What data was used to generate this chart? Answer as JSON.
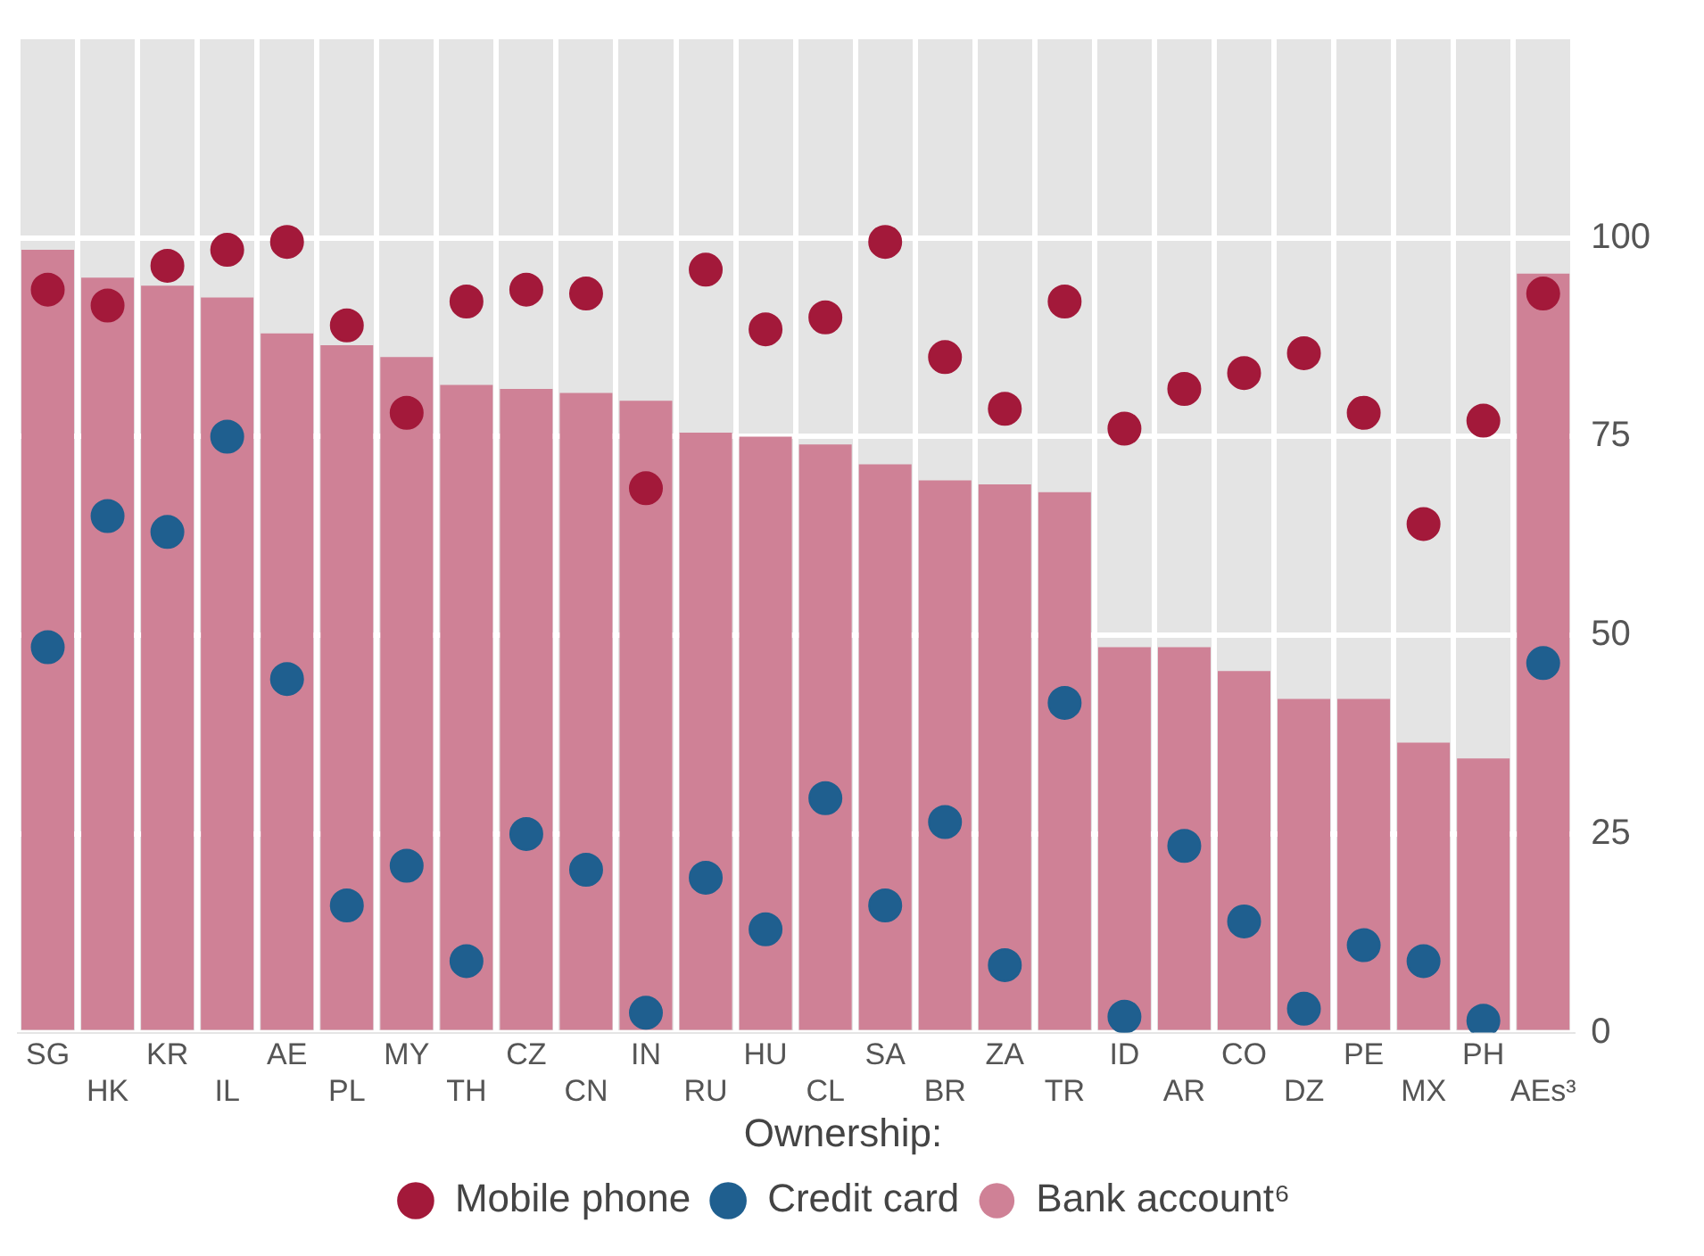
{
  "chart_data": {
    "type": "bar",
    "legend_title": "Ownership:",
    "categories": [
      "SG",
      "HK",
      "KR",
      "IL",
      "AE",
      "PL",
      "MY",
      "TH",
      "CZ",
      "CN",
      "IN",
      "RU",
      "HU",
      "CL",
      "SA",
      "BR",
      "ZA",
      "TR",
      "ID",
      "AR",
      "CO",
      "DZ",
      "PE",
      "MX",
      "PH",
      "AEs³"
    ],
    "series": [
      {
        "name": "Mobile phone",
        "type": "scatter",
        "color": "#a3193a",
        "values": [
          93.5,
          91.5,
          96.5,
          98.5,
          99.5,
          89,
          78,
          92,
          93.5,
          93,
          68.5,
          96,
          88.5,
          90,
          99.5,
          85,
          78.5,
          92,
          76,
          81,
          83,
          85.5,
          78,
          64,
          77,
          93
        ]
      },
      {
        "name": "Credit card",
        "type": "scatter",
        "color": "#1f5f8f",
        "values": [
          48.5,
          65,
          63,
          75,
          44.5,
          16,
          21,
          9,
          25,
          20.5,
          2.5,
          19.5,
          13,
          29.5,
          16,
          26.5,
          8.5,
          41.5,
          2,
          23.5,
          14,
          3,
          11,
          9,
          1.5,
          46.5
        ]
      },
      {
        "name": "Bank account⁶",
        "color": "#cf8196",
        "values": [
          98.5,
          95,
          94,
          92.5,
          88,
          86.5,
          85,
          81.5,
          81,
          80.5,
          79.5,
          75.5,
          75,
          74,
          71.5,
          69.5,
          69,
          68,
          48.5,
          48.5,
          45.5,
          42,
          42,
          36.5,
          34.5,
          95.5
        ]
      }
    ],
    "ylim": [
      0,
      125
    ],
    "yticks": [
      0,
      25,
      50,
      75,
      100
    ],
    "grid": true,
    "legend": "bottom",
    "marker": "circle"
  }
}
